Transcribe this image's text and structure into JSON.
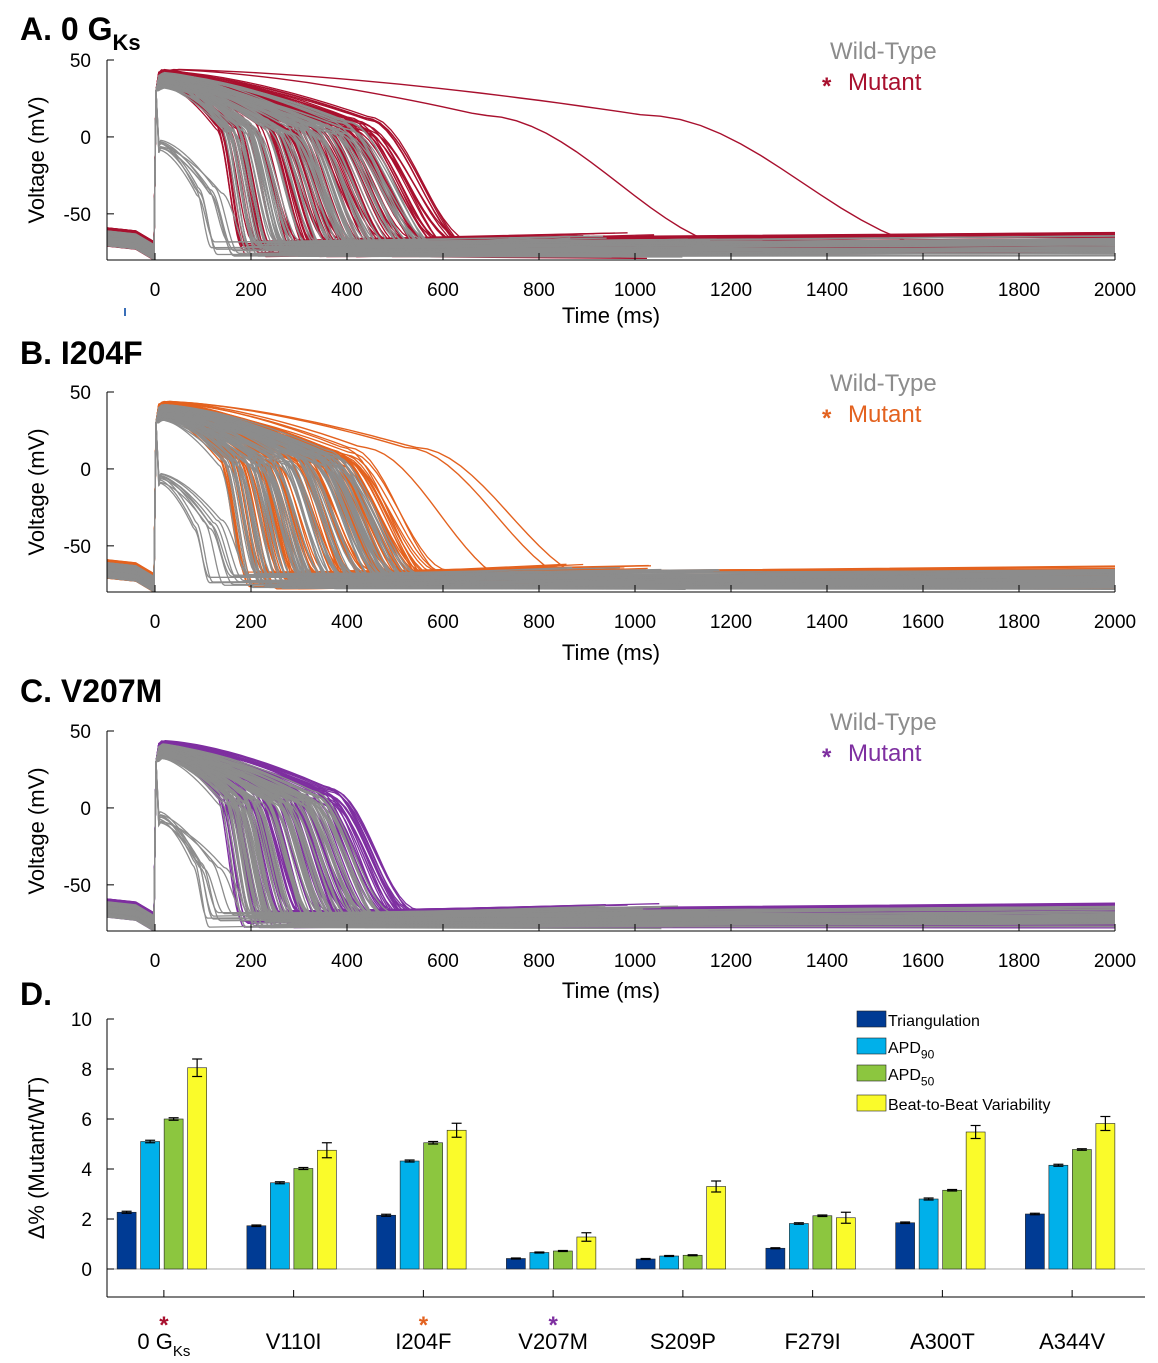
{
  "chart_data": [
    {
      "type": "line",
      "panel": "A. 0 G",
      "panel_sub": "Ks",
      "xlabel": "Time (ms)",
      "ylabel": "Voltage (mV)",
      "xlim": [
        -100,
        2000
      ],
      "ylim": [
        -80,
        50
      ],
      "xticks": [
        0,
        200,
        400,
        600,
        800,
        1000,
        1200,
        1400,
        1600,
        1800,
        2000
      ],
      "yticks": [
        50,
        0,
        -50
      ],
      "legend": {
        "wt": "Wild-Type",
        "star": "*",
        "mut": "Mutant",
        "position": "top-right"
      },
      "colors": {
        "wt": "#8c8c8c",
        "mut": "#a8102e"
      },
      "mut_end_range": [
        180,
        680
      ],
      "outliers": [
        {
          "end": 1250,
          "rest": -56,
          "t_start": 680,
          "t_step": 0.48
        },
        {
          "end": 1680,
          "rest": -63,
          "t_start": 1020,
          "t_step": 0.6
        }
      ],
      "tails_to": [
        860,
        1180
      ]
    },
    {
      "type": "line",
      "panel": "B. I204F",
      "panel_sub": "",
      "xlabel": "Time (ms)",
      "ylabel": "Voltage (mV)",
      "xlim": [
        -100,
        2000
      ],
      "ylim": [
        -80,
        50
      ],
      "xticks": [
        0,
        200,
        400,
        600,
        800,
        1000,
        1200,
        1400,
        1600,
        1800,
        2000
      ],
      "yticks": [
        50,
        0,
        -50
      ],
      "legend": {
        "wt": "Wild-Type",
        "star": "*",
        "mut": "Mutant",
        "position": "top-right"
      },
      "colors": {
        "wt": "#8c8c8c",
        "mut": "#e3621f"
      },
      "mut_end_range": [
        180,
        620
      ],
      "outliers": [
        {
          "end": 760,
          "rest": -58,
          "t_start": 430,
          "t_step": 0.5
        },
        {
          "end": 900,
          "rest": -62,
          "t_start": 520,
          "t_step": 0.5
        },
        {
          "end": 940,
          "rest": -66,
          "t_start": 540,
          "t_step": 0.5
        }
      ],
      "tails_to": [
        820,
        1180
      ]
    },
    {
      "type": "line",
      "panel": "C. V207M",
      "panel_sub": "",
      "xlabel": "Time (ms)",
      "ylabel": "Voltage (mV)",
      "xlim": [
        -100,
        2000
      ],
      "ylim": [
        -80,
        50
      ],
      "xticks": [
        0,
        200,
        400,
        600,
        800,
        1000,
        1200,
        1400,
        1600,
        1800,
        2000
      ],
      "yticks": [
        50,
        0,
        -50
      ],
      "legend": {
        "wt": "Wild-Type",
        "star": "*",
        "mut": "Mutant",
        "position": "top-right"
      },
      "colors": {
        "wt": "#8c8c8c",
        "mut": "#7e2fa0"
      },
      "mut_end_range": [
        180,
        560
      ],
      "outliers": [],
      "tails_to": [
        880,
        1180
      ]
    },
    {
      "type": "bar",
      "panel": "D.",
      "ylabel": "Δ% (Mutant/WT)",
      "ylim": [
        0,
        10
      ],
      "yticks": [
        0,
        2,
        4,
        6,
        8,
        10
      ],
      "categories": [
        "0 G",
        "V110I",
        "I204F",
        "V207M",
        "S209P",
        "F279I",
        "A300T",
        "A344V"
      ],
      "category_sub": [
        "Ks",
        "",
        "",
        "",
        "",
        "",
        "",
        ""
      ],
      "starred": [
        {
          "index": 0,
          "color": "#a8102e"
        },
        {
          "index": 2,
          "color": "#e3621f"
        },
        {
          "index": 3,
          "color": "#7e2fa0"
        }
      ],
      "star_glyph": "*",
      "series": [
        {
          "name": "Triangulation",
          "name_sub": "",
          "color": "#003b94",
          "values": [
            2.27,
            1.73,
            2.15,
            0.42,
            0.4,
            0.83,
            1.85,
            2.2
          ],
          "errors": [
            0.04,
            0.03,
            0.04,
            0.02,
            0.02,
            0.02,
            0.03,
            0.03
          ]
        },
        {
          "name": "APD",
          "name_sub": "90",
          "color": "#00b0ea",
          "values": [
            5.1,
            3.45,
            4.32,
            0.66,
            0.52,
            1.82,
            2.8,
            4.15
          ],
          "errors": [
            0.05,
            0.04,
            0.04,
            0.02,
            0.02,
            0.03,
            0.04,
            0.04
          ]
        },
        {
          "name": "APD",
          "name_sub": "50",
          "color": "#8cc63f",
          "values": [
            6.0,
            4.02,
            5.05,
            0.72,
            0.55,
            2.13,
            3.15,
            4.78
          ],
          "errors": [
            0.05,
            0.04,
            0.05,
            0.02,
            0.02,
            0.03,
            0.03,
            0.03
          ]
        },
        {
          "name": "Beat-to-Beat Variability",
          "name_sub": "",
          "color": "#fafb2a",
          "values": [
            8.05,
            4.75,
            5.55,
            1.28,
            3.3,
            2.05,
            5.48,
            5.82
          ],
          "errors": [
            0.35,
            0.3,
            0.28,
            0.17,
            0.22,
            0.22,
            0.26,
            0.28
          ]
        }
      ]
    }
  ]
}
